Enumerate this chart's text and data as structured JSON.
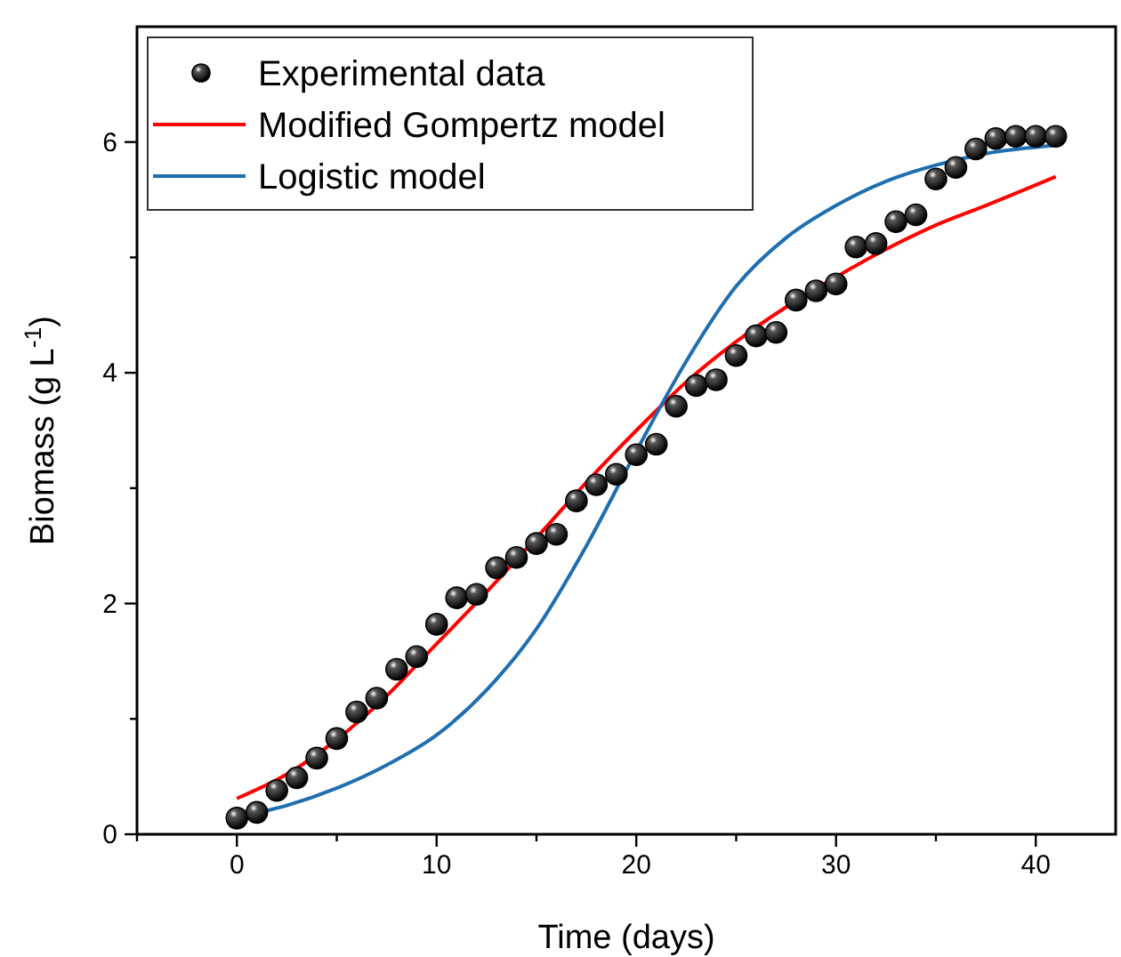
{
  "chart_data": {
    "type": "scatter",
    "xlabel": "Time (days)",
    "ylabel": "Biomass (g L$^{-1}$)",
    "xlim": [
      -5,
      44
    ],
    "ylim": [
      0,
      7
    ],
    "xticks": [
      {
        "value": -5,
        "label": null
      },
      0,
      {
        "value": 5,
        "label": null
      },
      10,
      {
        "value": 15,
        "label": null
      },
      20,
      {
        "value": 25,
        "label": null
      },
      30,
      {
        "value": 35,
        "label": null
      },
      40
    ],
    "yticks": [
      0,
      {
        "value": 1,
        "label": null
      },
      2,
      {
        "value": 3,
        "label": null
      },
      4,
      {
        "value": 5,
        "label": null
      },
      6
    ],
    "grid": false,
    "legend": "top left",
    "series": [
      {
        "name": "Experimental data",
        "color": "#000000",
        "marker": "circle",
        "x": [
          0,
          1,
          2,
          3,
          4,
          5,
          6,
          7,
          8,
          9,
          10,
          11,
          12,
          13,
          14,
          15,
          16,
          17,
          18,
          19,
          20,
          21,
          22,
          23,
          24,
          25,
          26,
          27,
          28,
          29,
          30,
          31,
          32,
          33,
          34,
          35,
          36,
          37,
          38,
          39,
          40,
          41
        ],
        "values": [
          0.14,
          0.19,
          0.38,
          0.49,
          0.66,
          0.83,
          1.06,
          1.18,
          1.43,
          1.54,
          1.82,
          2.05,
          2.08,
          2.31,
          2.4,
          2.52,
          2.6,
          2.89,
          3.03,
          3.12,
          3.29,
          3.38,
          3.71,
          3.89,
          3.94,
          4.15,
          4.32,
          4.35,
          4.63,
          4.71,
          4.77,
          5.09,
          5.12,
          5.31,
          5.37,
          5.68,
          5.78,
          5.94,
          6.03,
          6.05,
          6.05,
          6.05
        ]
      },
      {
        "name": "Modified Gompertz model",
        "type": "line",
        "color": "#ff0000",
        "line_style": "solid",
        "x": [
          0,
          2.5,
          5,
          7.5,
          10,
          12.5,
          15,
          17.5,
          20,
          22.5,
          25,
          27.5,
          30,
          32.5,
          35,
          37.5,
          41
        ],
        "values": [
          0.31,
          0.52,
          0.82,
          1.2,
          1.65,
          2.1,
          2.57,
          3.05,
          3.5,
          3.92,
          4.27,
          4.57,
          4.83,
          5.07,
          5.28,
          5.45,
          5.7
        ]
      },
      {
        "name": "Logistic model",
        "type": "line",
        "color": "#1f6fb0",
        "line_style": "solid",
        "x": [
          0,
          2.5,
          5,
          7.5,
          10,
          12.5,
          15,
          17.5,
          20,
          22.5,
          25,
          27.5,
          30,
          32.5,
          35,
          37.5,
          41
        ],
        "values": [
          0.15,
          0.25,
          0.4,
          0.6,
          0.86,
          1.25,
          1.78,
          2.5,
          3.32,
          4.1,
          4.75,
          5.17,
          5.45,
          5.66,
          5.8,
          5.9,
          5.97
        ]
      }
    ]
  }
}
